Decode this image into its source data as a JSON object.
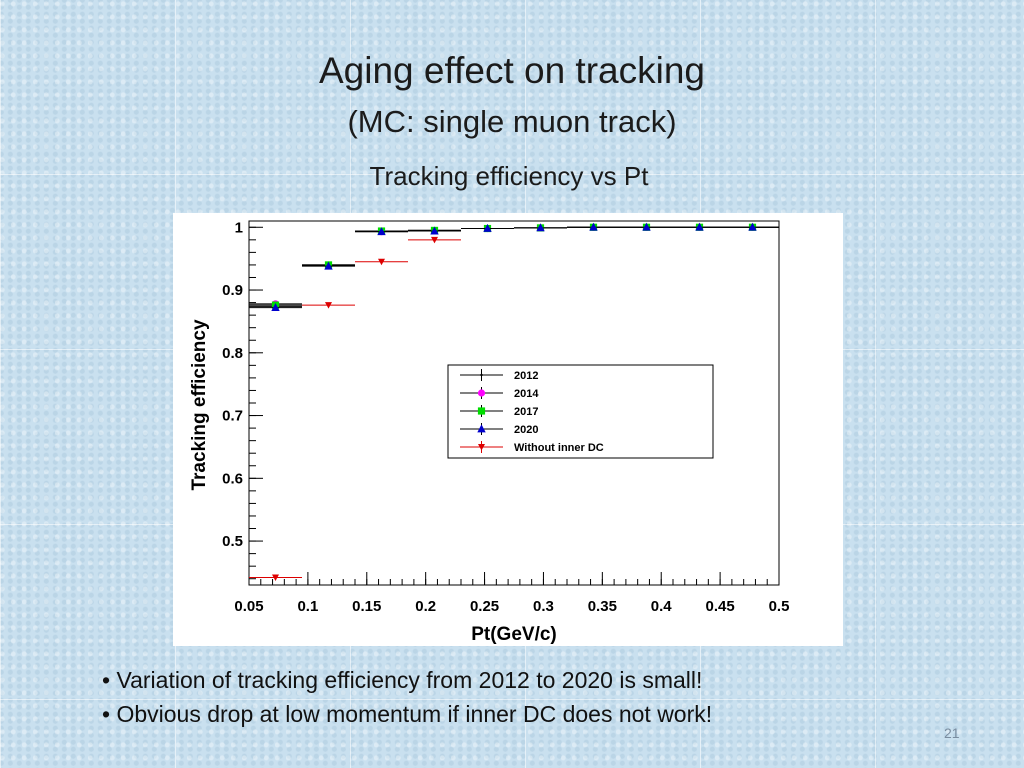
{
  "slide": {
    "title": "Aging effect on tracking",
    "subtitle": "(MC: single muon track)",
    "chart_caption": "Tracking efficiency vs Pt",
    "bullets": [
      "Variation of tracking efficiency from 2012 to 2020 is small!",
      "Obvious drop at low momentum if inner DC does not work!"
    ],
    "page_number": "21"
  },
  "chart_data": {
    "type": "scatter",
    "xlabel": "Pt(GeV/c)",
    "ylabel": "Tracking efficiency",
    "xlim": [
      0.05,
      0.5
    ],
    "ylim": [
      0.43,
      1.01
    ],
    "x_ticks": [
      0.05,
      0.1,
      0.15,
      0.2,
      0.25,
      0.3,
      0.35,
      0.4,
      0.45,
      0.5
    ],
    "x_tick_labels": [
      "0.05",
      "0.1",
      "0.15",
      "0.2",
      "0.25",
      "0.3",
      "0.35",
      "0.4",
      "0.45",
      "0.5"
    ],
    "y_ticks": [
      0.5,
      0.6,
      0.7,
      0.8,
      0.9,
      1.0
    ],
    "y_tick_labels": [
      "0.5",
      "0.6",
      "0.7",
      "0.8",
      "0.9",
      "1"
    ],
    "grid": false,
    "legend_position": "center-right",
    "series": [
      {
        "name": "2012",
        "marker": "cross",
        "color": "#000000",
        "points": [
          {
            "x": 0.0725,
            "xlo": 0.05,
            "xhi": 0.095,
            "y": 0.874
          },
          {
            "x": 0.1175,
            "xlo": 0.095,
            "xhi": 0.14,
            "y": 0.939
          },
          {
            "x": 0.1625,
            "xlo": 0.14,
            "xhi": 0.185,
            "y": 0.993
          },
          {
            "x": 0.2075,
            "xlo": 0.185,
            "xhi": 0.23,
            "y": 0.995
          },
          {
            "x": 0.2525,
            "xlo": 0.23,
            "xhi": 0.275,
            "y": 0.998
          },
          {
            "x": 0.2975,
            "xlo": 0.275,
            "xhi": 0.32,
            "y": 0.999
          },
          {
            "x": 0.3425,
            "xlo": 0.32,
            "xhi": 0.365,
            "y": 1.0
          },
          {
            "x": 0.3875,
            "xlo": 0.365,
            "xhi": 0.41,
            "y": 1.0
          },
          {
            "x": 0.4325,
            "xlo": 0.41,
            "xhi": 0.455,
            "y": 1.0
          },
          {
            "x": 0.4775,
            "xlo": 0.455,
            "xhi": 0.5,
            "y": 1.0
          }
        ]
      },
      {
        "name": "2014",
        "marker": "circle",
        "color": "#ff00ff",
        "points": [
          {
            "x": 0.0725,
            "xlo": 0.05,
            "xhi": 0.095,
            "y": 0.878
          },
          {
            "x": 0.1175,
            "xlo": 0.095,
            "xhi": 0.14,
            "y": 0.94
          },
          {
            "x": 0.1625,
            "xlo": 0.14,
            "xhi": 0.185,
            "y": 0.993
          },
          {
            "x": 0.2075,
            "xlo": 0.185,
            "xhi": 0.23,
            "y": 0.995
          },
          {
            "x": 0.2525,
            "xlo": 0.23,
            "xhi": 0.275,
            "y": 0.998
          },
          {
            "x": 0.2975,
            "xlo": 0.275,
            "xhi": 0.32,
            "y": 0.999
          },
          {
            "x": 0.3425,
            "xlo": 0.32,
            "xhi": 0.365,
            "y": 1.0
          },
          {
            "x": 0.3875,
            "xlo": 0.365,
            "xhi": 0.41,
            "y": 1.0
          },
          {
            "x": 0.4325,
            "xlo": 0.41,
            "xhi": 0.455,
            "y": 1.0
          },
          {
            "x": 0.4775,
            "xlo": 0.455,
            "xhi": 0.5,
            "y": 1.0
          }
        ]
      },
      {
        "name": "2017",
        "marker": "square",
        "color": "#00dd00",
        "points": [
          {
            "x": 0.0725,
            "xlo": 0.05,
            "xhi": 0.095,
            "y": 0.876
          },
          {
            "x": 0.1175,
            "xlo": 0.095,
            "xhi": 0.14,
            "y": 0.94
          },
          {
            "x": 0.1625,
            "xlo": 0.14,
            "xhi": 0.185,
            "y": 0.994
          },
          {
            "x": 0.2075,
            "xlo": 0.185,
            "xhi": 0.23,
            "y": 0.995
          },
          {
            "x": 0.2525,
            "xlo": 0.23,
            "xhi": 0.275,
            "y": 0.998
          },
          {
            "x": 0.2975,
            "xlo": 0.275,
            "xhi": 0.32,
            "y": 0.999
          },
          {
            "x": 0.3425,
            "xlo": 0.32,
            "xhi": 0.365,
            "y": 1.0
          },
          {
            "x": 0.3875,
            "xlo": 0.365,
            "xhi": 0.41,
            "y": 1.0
          },
          {
            "x": 0.4325,
            "xlo": 0.41,
            "xhi": 0.455,
            "y": 1.0
          },
          {
            "x": 0.4775,
            "xlo": 0.455,
            "xhi": 0.5,
            "y": 1.0
          }
        ]
      },
      {
        "name": "2020",
        "marker": "triangle",
        "color": "#0000cc",
        "points": [
          {
            "x": 0.0725,
            "xlo": 0.05,
            "xhi": 0.095,
            "y": 0.872
          },
          {
            "x": 0.1175,
            "xlo": 0.095,
            "xhi": 0.14,
            "y": 0.938
          },
          {
            "x": 0.1625,
            "xlo": 0.14,
            "xhi": 0.185,
            "y": 0.993
          },
          {
            "x": 0.2075,
            "xlo": 0.185,
            "xhi": 0.23,
            "y": 0.994
          },
          {
            "x": 0.2525,
            "xlo": 0.23,
            "xhi": 0.275,
            "y": 0.998
          },
          {
            "x": 0.2975,
            "xlo": 0.275,
            "xhi": 0.32,
            "y": 0.999
          },
          {
            "x": 0.3425,
            "xlo": 0.32,
            "xhi": 0.365,
            "y": 1.0
          },
          {
            "x": 0.3875,
            "xlo": 0.365,
            "xhi": 0.41,
            "y": 1.0
          },
          {
            "x": 0.4325,
            "xlo": 0.41,
            "xhi": 0.455,
            "y": 1.0
          },
          {
            "x": 0.4775,
            "xlo": 0.455,
            "xhi": 0.5,
            "y": 1.0
          }
        ]
      },
      {
        "name": "Without inner DC",
        "marker": "star",
        "color": "#dd0000",
        "points": [
          {
            "x": 0.0725,
            "xlo": 0.05,
            "xhi": 0.095,
            "y": 0.442
          },
          {
            "x": 0.1175,
            "xlo": 0.095,
            "xhi": 0.14,
            "y": 0.876
          },
          {
            "x": 0.1625,
            "xlo": 0.14,
            "xhi": 0.185,
            "y": 0.945
          },
          {
            "x": 0.2075,
            "xlo": 0.185,
            "xhi": 0.23,
            "y": 0.98
          }
        ]
      }
    ]
  }
}
